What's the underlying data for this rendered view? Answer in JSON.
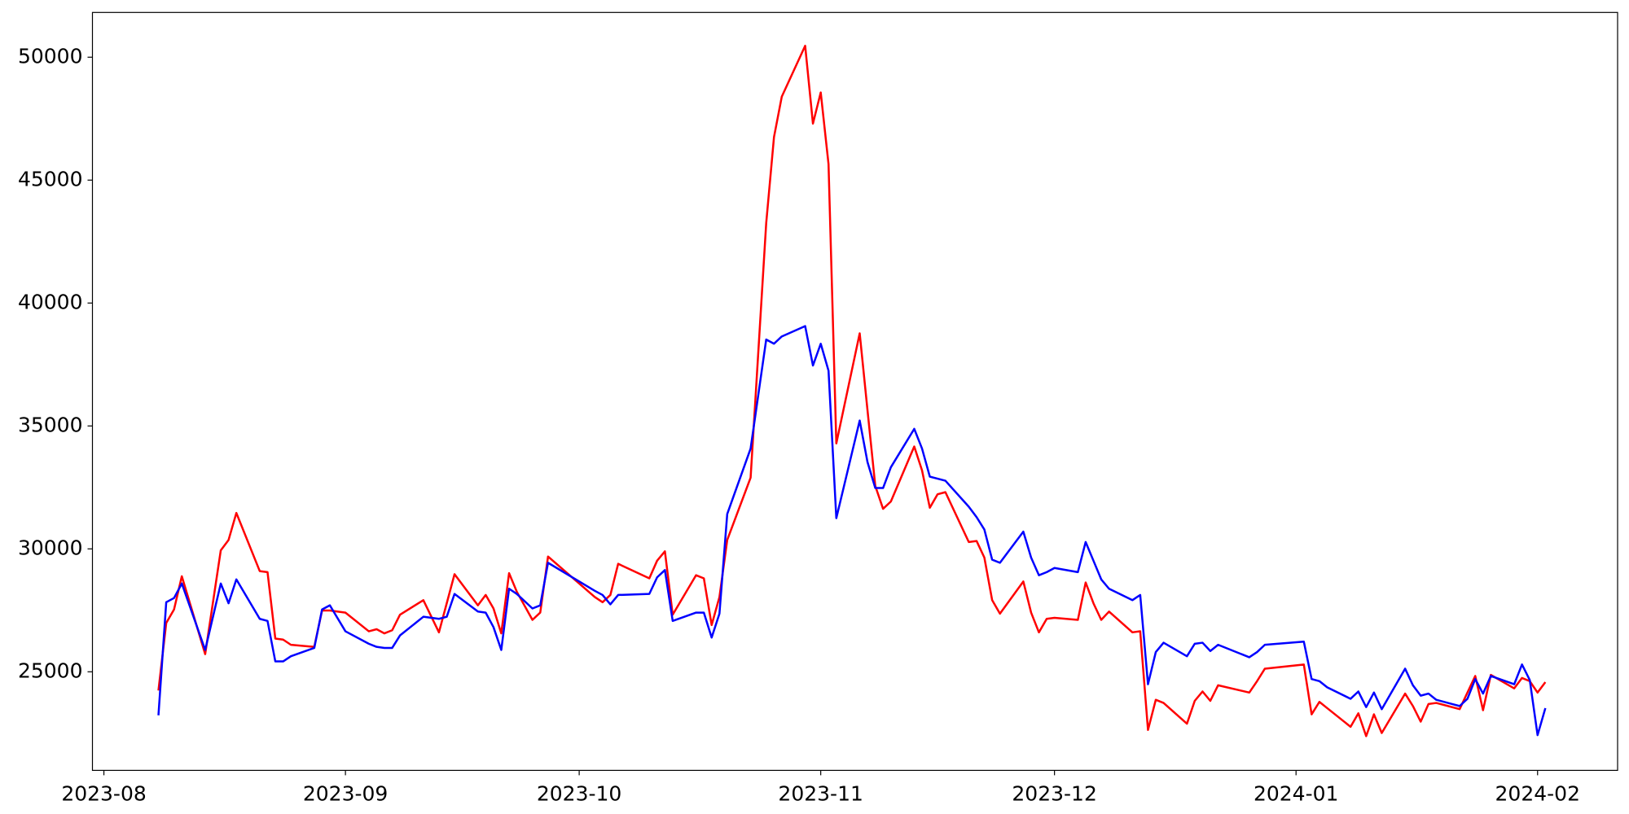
{
  "chart_data": {
    "type": "line",
    "x": [
      7,
      8,
      9,
      10,
      13,
      15,
      16,
      17,
      20,
      21,
      22,
      23,
      24,
      27,
      28,
      29,
      31,
      34,
      35,
      36,
      37,
      38,
      41,
      43,
      44,
      45,
      48,
      49,
      50,
      51,
      52,
      53,
      55,
      56,
      57,
      63,
      64,
      65,
      66,
      70,
      71,
      72,
      73,
      76,
      77,
      78,
      79,
      80,
      83,
      85,
      86,
      87,
      90,
      91,
      92,
      93,
      94,
      97,
      98,
      99,
      100,
      101,
      104,
      105,
      106,
      107,
      108,
      111,
      112,
      113,
      114,
      115,
      118,
      119,
      120,
      121,
      122,
      125,
      126,
      127,
      128,
      129,
      132,
      133,
      134,
      135,
      136,
      139,
      140,
      141,
      142,
      143,
      147,
      148,
      149,
      154,
      155,
      156,
      157,
      160,
      161,
      162,
      163,
      164,
      167,
      168,
      169,
      170,
      171,
      174,
      175,
      176,
      177,
      178,
      181,
      182,
      183,
      184,
      185
    ],
    "series": [
      {
        "color": "#ff0000",
        "values": [
          24240,
          26985,
          27534,
          28885,
          25718,
          29941,
          30363,
          31461,
          29096,
          29054,
          26352,
          26309,
          26098,
          26014,
          27492,
          27492,
          27407,
          26647,
          26732,
          26563,
          26690,
          27323,
          27914,
          26605,
          27787,
          28970,
          27703,
          28125,
          27576,
          26563,
          29012,
          28252,
          27112,
          27407,
          29688,
          28041,
          27830,
          28125,
          29392,
          28801,
          29519,
          29899,
          27323,
          28928,
          28801,
          26901,
          28041,
          30363,
          32897,
          43244,
          46749,
          48396,
          50465,
          47298,
          48565,
          45651,
          34291,
          38767,
          35642,
          32559,
          31630,
          31926,
          34164,
          33193,
          31673,
          32222,
          32306,
          30279,
          30321,
          29645,
          27914,
          27365,
          28674,
          27407,
          26605,
          27154,
          27196,
          27112,
          28632,
          27787,
          27112,
          27450,
          26605,
          26647,
          22635,
          23860,
          23733,
          22889,
          23818,
          24198,
          23818,
          24451,
          24156,
          24620,
          25127,
          25296,
          23269,
          23776,
          23522,
          22762,
          23311,
          22382,
          23269,
          22509,
          24113,
          23607,
          22973,
          23691,
          23733,
          23480,
          24156,
          24831,
          23438,
          24873,
          24325,
          24747,
          24620,
          24156,
          24578
        ]
      },
      {
        "color": "#0000ff",
        "values": [
          23230,
          27830,
          28000,
          28590,
          25887,
          28590,
          27787,
          28759,
          27154,
          27069,
          25422,
          25422,
          25634,
          25971,
          27534,
          27703,
          26647,
          26140,
          26014,
          25971,
          25971,
          26478,
          27239,
          27154,
          27239,
          28167,
          27450,
          27407,
          26816,
          25887,
          28379,
          28167,
          27576,
          27703,
          29434,
          28294,
          28125,
          27745,
          28125,
          28167,
          28843,
          29139,
          27069,
          27407,
          27407,
          26394,
          27365,
          31419,
          34080,
          38514,
          38345,
          38640,
          39063,
          37458,
          38345,
          37247,
          31250,
          35220,
          33531,
          32475,
          32475,
          33319,
          34882,
          34080,
          32939,
          32855,
          32771,
          31715,
          31292,
          30786,
          29561,
          29434,
          30701,
          29645,
          28928,
          29054,
          29223,
          29054,
          30279,
          29519,
          28759,
          28379,
          27914,
          28125,
          24493,
          25803,
          26183,
          25634,
          26140,
          26183,
          25845,
          26098,
          25591,
          25803,
          26098,
          26225,
          24705,
          24620,
          24367,
          23902,
          24198,
          23564,
          24156,
          23480,
          25127,
          24451,
          24029,
          24113,
          23860,
          23607,
          23902,
          24705,
          24113,
          24831,
          24493,
          25296,
          24662,
          22424,
          23522
        ]
      }
    ],
    "xlim": [
      -1.47,
      194.27
    ],
    "ylim": [
      20990,
      51820
    ],
    "xticks": [
      {
        "value": 0,
        "label": "2023-08"
      },
      {
        "value": 31,
        "label": "2023-09"
      },
      {
        "value": 61,
        "label": "2023-10"
      },
      {
        "value": 92,
        "label": "2023-11"
      },
      {
        "value": 122,
        "label": "2023-12"
      },
      {
        "value": 153,
        "label": "2024-01"
      },
      {
        "value": 184,
        "label": "2024-02"
      }
    ],
    "yticks": [
      25000,
      30000,
      35000,
      40000,
      45000,
      50000
    ]
  }
}
